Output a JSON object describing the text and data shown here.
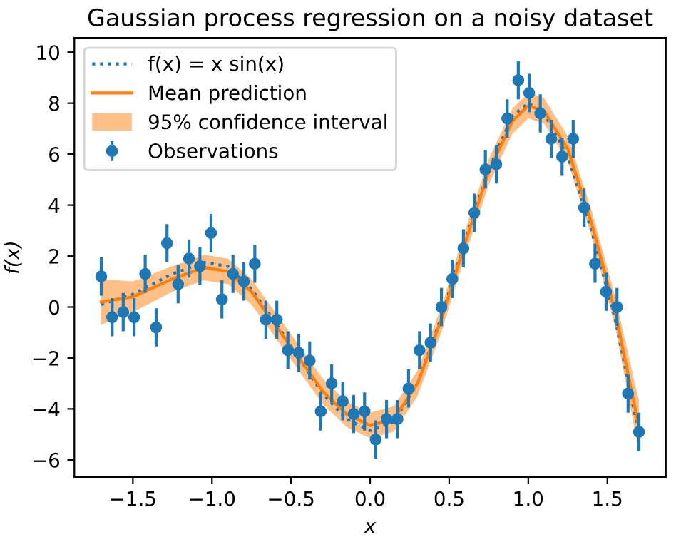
{
  "chart_data": {
    "type": "line",
    "title": "Gaussian process regression on a noisy dataset",
    "xlabel": "x",
    "ylabel": "f(x)",
    "xlim": [
      -1.87,
      1.87
    ],
    "ylim": [
      -6.67,
      10.56
    ],
    "xticks": [
      {
        "value": -1.5,
        "label": "−1.5"
      },
      {
        "value": -1.0,
        "label": "−1.0"
      },
      {
        "value": -0.5,
        "label": "−0.5"
      },
      {
        "value": 0.0,
        "label": "0.0"
      },
      {
        "value": 0.5,
        "label": "0.5"
      },
      {
        "value": 1.0,
        "label": "1.0"
      },
      {
        "value": 1.5,
        "label": "1.5"
      }
    ],
    "yticks": [
      {
        "value": -6,
        "label": "−6"
      },
      {
        "value": -4,
        "label": "−4"
      },
      {
        "value": -2,
        "label": "−2"
      },
      0,
      2,
      4,
      6,
      8,
      10
    ],
    "grid": false,
    "legend": "top left",
    "annotations": [
      "95% confidence interval"
    ],
    "series": [
      {
        "type": "line",
        "name": "f(x) = x sin(x)",
        "color": "#1f77b4",
        "line_style": "dotted",
        "x": [
          -1.7,
          -1.5,
          -1.25,
          -1.05,
          -0.9,
          -0.75,
          -0.6,
          -0.45,
          -0.3,
          -0.15,
          0.0,
          0.15,
          0.3,
          0.45,
          0.6,
          0.75,
          0.9,
          1.0,
          1.1,
          1.25,
          1.4,
          1.55,
          1.7
        ],
        "values": [
          0.1,
          0.5,
          1.3,
          1.75,
          1.6,
          0.7,
          -0.6,
          -2.0,
          -3.4,
          -4.4,
          -4.85,
          -4.5,
          -3.0,
          -0.4,
          2.6,
          5.4,
          7.5,
          8.0,
          7.6,
          5.9,
          3.0,
          -0.5,
          -5.0
        ]
      },
      {
        "type": "line",
        "name": "Mean prediction",
        "color": "#ff7f0e",
        "line_style": "solid",
        "x": [
          -1.7,
          -1.5,
          -1.25,
          -1.05,
          -0.9,
          -0.75,
          -0.6,
          -0.45,
          -0.3,
          -0.15,
          0.0,
          0.15,
          0.3,
          0.45,
          0.6,
          0.75,
          0.9,
          1.0,
          1.1,
          1.25,
          1.4,
          1.55,
          1.7
        ],
        "values": [
          0.2,
          0.4,
          1.1,
          1.55,
          1.4,
          0.6,
          -0.7,
          -2.0,
          -3.3,
          -4.2,
          -4.65,
          -4.4,
          -3.0,
          -0.5,
          2.5,
          5.3,
          7.3,
          7.9,
          7.7,
          6.2,
          3.3,
          -0.2,
          -4.7
        ],
        "lower": [
          -0.7,
          -0.2,
          0.6,
          1.05,
          0.9,
          0.1,
          -1.2,
          -2.5,
          -3.8,
          -4.7,
          -5.15,
          -4.9,
          -3.5,
          -1.0,
          2.0,
          4.8,
          6.8,
          7.4,
          7.2,
          5.7,
          2.8,
          -0.8,
          -5.7
        ],
        "upper": [
          1.1,
          1.0,
          1.6,
          2.05,
          1.9,
          1.1,
          -0.2,
          -1.5,
          -2.8,
          -3.7,
          -4.15,
          -3.9,
          -2.5,
          0.0,
          3.0,
          5.8,
          7.8,
          8.4,
          8.2,
          6.7,
          3.8,
          0.4,
          -3.7
        ]
      },
      {
        "type": "scatter",
        "name": "Observations",
        "color": "#1f77b4",
        "marker": "circle",
        "x": [
          -1.7,
          -1.631,
          -1.561,
          -1.492,
          -1.422,
          -1.353,
          -1.284,
          -1.214,
          -1.145,
          -1.076,
          -1.006,
          -0.937,
          -0.867,
          -0.798,
          -0.729,
          -0.659,
          -0.59,
          -0.52,
          -0.451,
          -0.382,
          -0.312,
          -0.243,
          -0.173,
          -0.104,
          -0.035,
          0.035,
          0.104,
          0.173,
          0.243,
          0.312,
          0.382,
          0.451,
          0.52,
          0.59,
          0.659,
          0.729,
          0.798,
          0.867,
          0.937,
          1.006,
          1.076,
          1.145,
          1.214,
          1.284,
          1.353,
          1.422,
          1.492,
          1.561,
          1.631,
          1.7
        ],
        "values": [
          1.2,
          -0.4,
          -0.2,
          -0.4,
          1.3,
          -0.8,
          2.5,
          0.9,
          1.9,
          1.6,
          2.9,
          0.3,
          1.3,
          1.0,
          1.7,
          -0.5,
          -0.5,
          -1.7,
          -1.8,
          -2.1,
          -4.1,
          -3.0,
          -3.7,
          -4.2,
          -4.1,
          -5.2,
          -4.4,
          -4.4,
          -3.2,
          -1.7,
          -1.4,
          0.0,
          1.1,
          2.3,
          3.7,
          5.4,
          5.6,
          7.4,
          8.9,
          8.4,
          7.6,
          6.6,
          5.9,
          6.6,
          3.9,
          1.7,
          0.6,
          0.0,
          -3.4,
          -4.9
        ],
        "errors": [
          0.75,
          0.75,
          0.75,
          0.75,
          0.75,
          0.75,
          0.75,
          0.75,
          0.75,
          0.75,
          0.75,
          0.75,
          0.75,
          0.75,
          0.75,
          0.75,
          0.75,
          0.75,
          0.75,
          0.75,
          0.75,
          0.75,
          0.75,
          0.75,
          0.75,
          0.75,
          0.75,
          0.75,
          0.75,
          0.75,
          0.75,
          0.75,
          0.75,
          0.75,
          0.75,
          0.75,
          0.75,
          0.75,
          0.75,
          0.75,
          0.75,
          0.75,
          0.75,
          0.75,
          0.75,
          0.75,
          0.75,
          0.75,
          0.75,
          0.75
        ]
      }
    ]
  }
}
